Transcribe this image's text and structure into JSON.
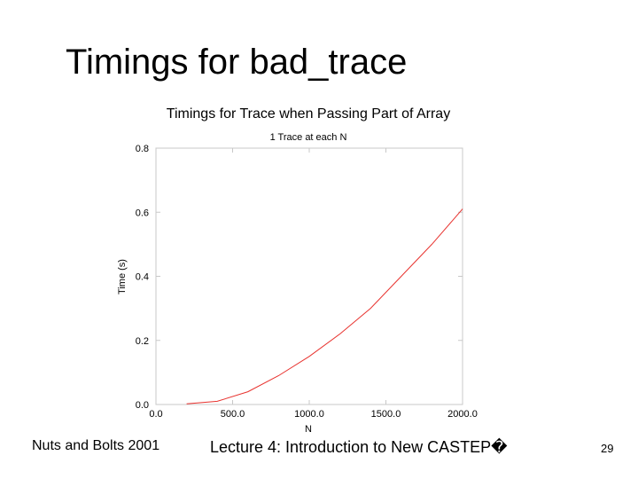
{
  "slide": {
    "title": "Timings for bad_trace",
    "footer_left": "Nuts and Bolts 2001",
    "footer_center": "Lecture 4: Introduction to New CASTEP�",
    "page_number": "29"
  },
  "chart_data": {
    "type": "line",
    "title": "Timings for Trace when Passing Part of Array",
    "subtitle": "1 Trace at each N",
    "xlabel": "N",
    "ylabel": "Time (s)",
    "xlim": [
      0,
      2000
    ],
    "ylim": [
      0,
      0.8
    ],
    "x_ticks": [
      0,
      500,
      1000,
      1500,
      2000
    ],
    "x_tick_labels": [
      "0.0",
      "500.0",
      "1000.0",
      "1500.0",
      "2000.0"
    ],
    "y_ticks": [
      0,
      0.2,
      0.4,
      0.6,
      0.8
    ],
    "y_tick_labels": [
      "0.0",
      "0.2",
      "0.4",
      "0.6",
      "0.8"
    ],
    "grid": false,
    "series": [
      {
        "color": "#e8322e",
        "x": [
          200,
          400,
          600,
          800,
          1000,
          1200,
          1400,
          1600,
          1800,
          2000
        ],
        "y": [
          0.002,
          0.01,
          0.04,
          0.09,
          0.15,
          0.22,
          0.3,
          0.4,
          0.5,
          0.61
        ]
      }
    ]
  }
}
